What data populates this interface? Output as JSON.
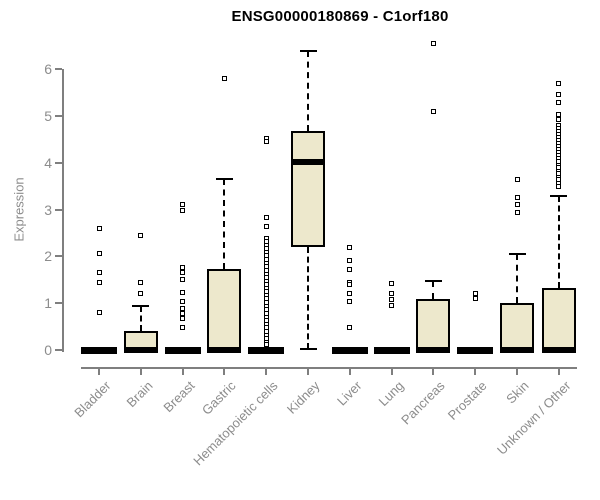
{
  "title": "ENSG00000180869 - C1orf180",
  "chart_data": {
    "type": "boxplot",
    "title": "ENSG00000180869 - C1orf180",
    "xlabel": "",
    "ylabel": "Expression",
    "ylim": [
      0,
      6
    ],
    "yticks": [
      0,
      1,
      2,
      3,
      4,
      5,
      6
    ],
    "grid": false,
    "legend": "none",
    "colors": {
      "box_fill": "#ede8cc",
      "box_border": "#000000",
      "median": "#000000",
      "whisker": "#000000",
      "axis": "#7f7f7f",
      "tick_label": "#8c8c8c",
      "title": "#000000",
      "background": "#ffffff"
    },
    "categories": [
      "Bladder",
      "Brain",
      "Breast",
      "Gastric",
      "Hematopoietic cells",
      "Kidney",
      "Liver",
      "Lung",
      "Pancreas",
      "Prostate",
      "Skin",
      "Unknown / Other"
    ],
    "groups": [
      {
        "label": "Bladder",
        "q1": 0,
        "median": 0,
        "q3": 0,
        "whisker_low": 0,
        "whisker_high": 0,
        "outliers": [
          2.6,
          2.05,
          1.65,
          1.45,
          0.8
        ]
      },
      {
        "label": "Brain",
        "q1": 0,
        "median": 0,
        "q3": 0.4,
        "whisker_low": 0,
        "whisker_high": 0.95,
        "outliers": [
          2.45,
          1.45,
          1.2
        ]
      },
      {
        "label": "Breast",
        "q1": 0,
        "median": 0,
        "q3": 0,
        "whisker_low": 0,
        "whisker_high": 0,
        "outliers": [
          3.1,
          2.97,
          1.77,
          1.65,
          1.5,
          1.22,
          1.03,
          0.88,
          0.79,
          0.68,
          0.49
        ]
      },
      {
        "label": "Gastric",
        "q1": 0,
        "median": 0,
        "q3": 1.72,
        "whisker_low": 0,
        "whisker_high": 3.65,
        "outliers": [
          5.8
        ]
      },
      {
        "label": "Hematopoietic cells",
        "q1": 0,
        "median": 0,
        "q3": 0,
        "whisker_low": 0,
        "whisker_high": 0,
        "outliers": [
          4.52,
          4.45,
          2.82,
          2.63,
          2.39,
          2.31,
          2.24,
          2.16,
          2.08,
          2.01,
          1.93,
          1.85,
          1.78,
          1.7,
          1.62,
          1.55,
          1.47,
          1.39,
          1.32,
          1.24,
          1.16,
          1.09,
          1.01,
          0.93,
          0.86,
          0.78,
          0.7,
          0.63,
          0.55,
          0.47,
          0.4,
          0.32,
          0.24,
          0.17,
          0.11
        ]
      },
      {
        "label": "Kidney",
        "q1": 2.2,
        "median": 4.02,
        "q3": 4.68,
        "whisker_low": 0.02,
        "whisker_high": 6.38,
        "outliers": []
      },
      {
        "label": "Liver",
        "q1": 0,
        "median": 0,
        "q3": 0,
        "whisker_low": 0,
        "whisker_high": 0,
        "outliers": [
          2.18,
          1.92,
          1.71,
          1.45,
          1.4,
          1.2,
          1.03,
          0.49
        ]
      },
      {
        "label": "Lung",
        "q1": 0,
        "median": 0,
        "q3": 0,
        "whisker_low": 0,
        "whisker_high": 0,
        "outliers": [
          1.43,
          1.2,
          1.07,
          0.96
        ]
      },
      {
        "label": "Pancreas",
        "q1": 0,
        "median": 0,
        "q3": 1.08,
        "whisker_low": 0,
        "whisker_high": 1.47,
        "outliers": [
          6.55,
          5.1
        ]
      },
      {
        "label": "Prostate",
        "q1": 0,
        "median": 0,
        "q3": 0,
        "whisker_low": 0,
        "whisker_high": 0,
        "outliers": [
          1.2,
          1.1
        ]
      },
      {
        "label": "Skin",
        "q1": 0,
        "median": 0,
        "q3": 1.0,
        "whisker_low": 0,
        "whisker_high": 2.05,
        "outliers": [
          3.63,
          3.25,
          3.1,
          2.93
        ]
      },
      {
        "label": "Unknown / Other",
        "q1": 0,
        "median": 0,
        "q3": 1.33,
        "whisker_low": 0,
        "whisker_high": 3.28,
        "outliers": [
          5.7,
          5.45,
          5.28,
          5.02,
          4.92,
          4.8,
          4.73,
          4.67,
          4.6,
          4.54,
          4.47,
          4.41,
          4.34,
          4.28,
          4.21,
          4.15,
          4.08,
          4.02,
          3.95,
          3.89,
          3.82,
          3.76,
          3.69,
          3.63,
          3.56,
          3.5
        ]
      }
    ]
  }
}
